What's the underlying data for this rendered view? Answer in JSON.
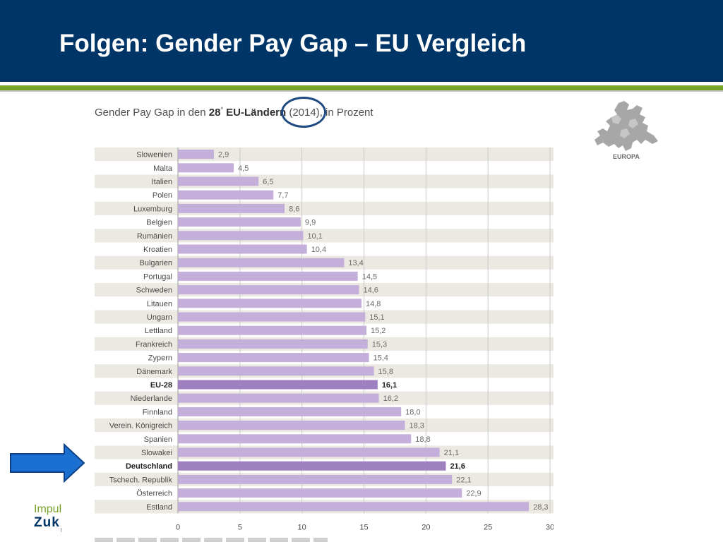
{
  "slide": {
    "title": "Folgen: Gender Pay Gap – EU Vergleich"
  },
  "caption": {
    "part1": "Gender Pay Gap in den ",
    "part2": "28",
    "part3": "*",
    "part4": " EU-Ländern",
    "part5": " (2014), in Prozent"
  },
  "map": {
    "label": "EUROPA",
    "icon": "europe-map-icon"
  },
  "logo": {
    "line1": "Impul",
    "line2": "Zuk"
  },
  "colors": {
    "header": "#003567",
    "accent_green": "#77a22a",
    "bar": "#c3afd9",
    "bar_highlight": "#9e7fc0",
    "row_shade": "#ece9e2",
    "arrow": "#1a6fd0",
    "circle": "#1f4a82"
  },
  "chart_data": {
    "type": "bar",
    "orientation": "horizontal",
    "categories": [
      "Slowenien",
      "Malta",
      "Italien",
      "Polen",
      "Luxemburg",
      "Belgien",
      "Rumänien",
      "Kroatien",
      "Bulgarien",
      "Portugal",
      "Schweden",
      "Litauen",
      "Ungarn",
      "Lettland",
      "Frankreich",
      "Zypern",
      "Dänemark",
      "EU-28",
      "Niederlande",
      "Finnland",
      "Verein. Königreich",
      "Spanien",
      "Slowakei",
      "Deutschland",
      "Tschech. Republik",
      "Österreich",
      "Estland"
    ],
    "values": [
      2.9,
      4.5,
      6.5,
      7.7,
      8.6,
      9.9,
      10.1,
      10.4,
      13.4,
      14.5,
      14.6,
      14.8,
      15.1,
      15.2,
      15.3,
      15.4,
      15.8,
      16.1,
      16.2,
      18.0,
      18.3,
      18.8,
      21.1,
      21.6,
      22.1,
      22.9,
      28.3
    ],
    "value_labels": [
      "2,9",
      "4,5",
      "6,5",
      "7,7",
      "8,6",
      "9,9",
      "10,1",
      "10,4",
      "13,4",
      "14,5",
      "14,6",
      "14,8",
      "15,1",
      "15,2",
      "15,3",
      "15,4",
      "15,8",
      "16,1",
      "16,2",
      "18,0",
      "18,3",
      "18,8",
      "21,1",
      "21,6",
      "22,1",
      "22,9",
      "28,3"
    ],
    "highlighted": [
      "EU-28",
      "Deutschland"
    ],
    "xlim": [
      0,
      30
    ],
    "xticks": [
      0,
      5,
      10,
      15,
      20,
      25,
      30
    ],
    "grid": true
  }
}
